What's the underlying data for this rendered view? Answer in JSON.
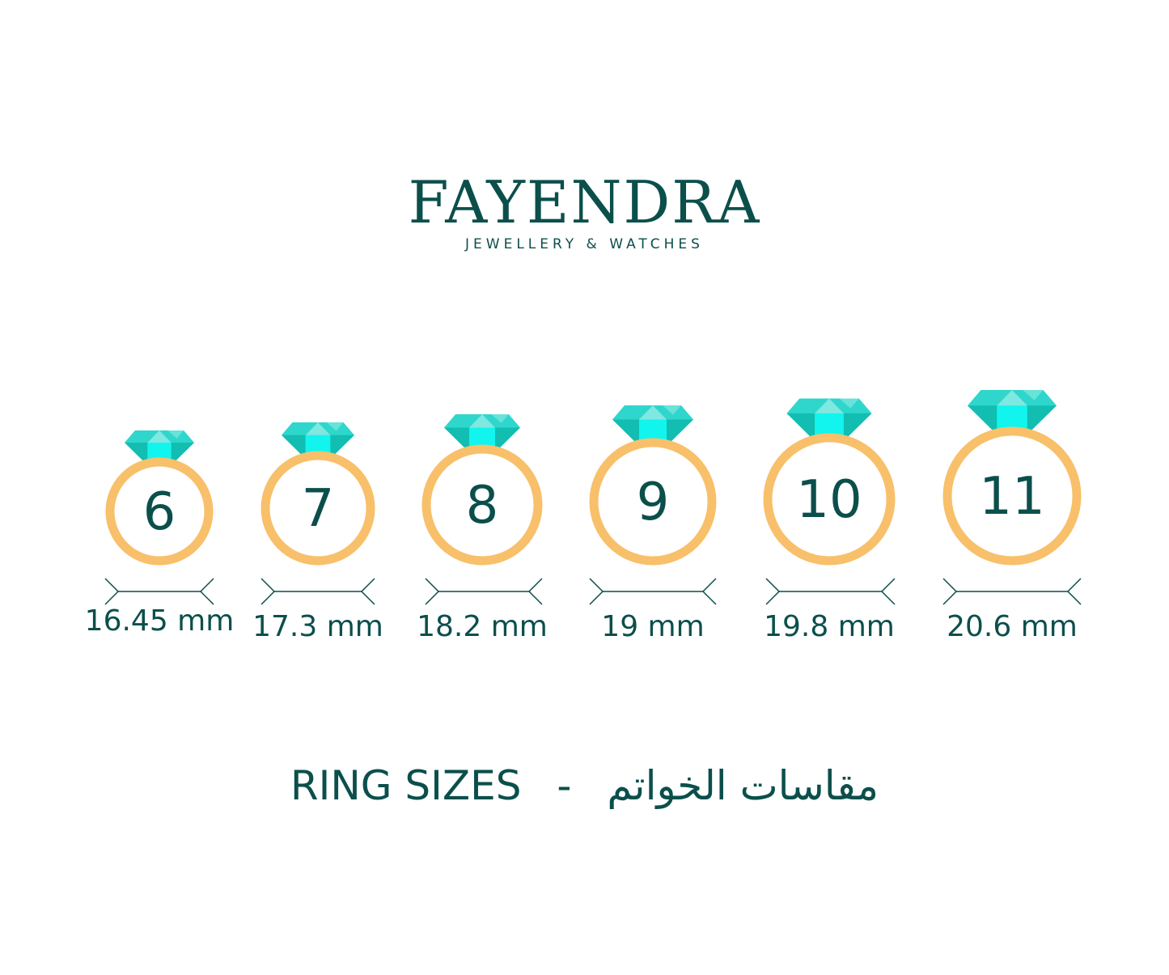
{
  "brand": {
    "name": "FAYENDRA",
    "tagline": "JEWELLERY & WATCHES"
  },
  "colors": {
    "ring": "#f8c06a",
    "text": "#0b4f4b",
    "gem_light": "#7fe8e0",
    "gem_mid": "#2fd6cc",
    "gem_dark": "#12bdb2",
    "gem_bright": "#11f5ee"
  },
  "rings": [
    {
      "size": "6",
      "diameter": "16.45 mm"
    },
    {
      "size": "7",
      "diameter": "17.3 mm"
    },
    {
      "size": "8",
      "diameter": "18.2 mm"
    },
    {
      "size": "9",
      "diameter": "19 mm"
    },
    {
      "size": "10",
      "diameter": "19.8 mm"
    },
    {
      "size": "11",
      "diameter": "20.6 mm"
    }
  ],
  "title": {
    "english": "RING SIZES",
    "separator": "-",
    "arabic": "مقاسات الخواتم"
  }
}
